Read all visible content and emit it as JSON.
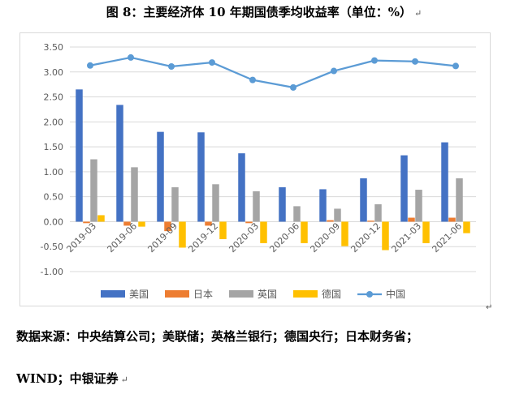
{
  "header": {
    "title": "图 8：主要经济体 10 年期国债季均收益率（单位：%）",
    "return_mark": "↵"
  },
  "footer": {
    "source_line1": "数据来源：中央结算公司；美联储；英格兰银行；德国央行；日本财务省；",
    "source_line2": "WIND；中银证券",
    "return_mark": "↵"
  },
  "chart_data": {
    "type": "bar",
    "title": "",
    "xlabel": "",
    "ylabel": "",
    "ylim": [
      -1.0,
      3.5
    ],
    "yticks": [
      "3.50",
      "3.00",
      "2.50",
      "2.00",
      "1.50",
      "1.00",
      "0.50",
      "0.00",
      "-0.50",
      "-1.00"
    ],
    "grid": true,
    "legend_position": "bottom",
    "categories": [
      "2019-03",
      "2019-06",
      "2019-09",
      "2019-12",
      "2020-03",
      "2020-06",
      "2020-09",
      "2020-12",
      "2021-03",
      "2021-06"
    ],
    "series": [
      {
        "name": "美国",
        "type": "bar",
        "color": "#4472C4",
        "values": [
          2.65,
          2.34,
          1.8,
          1.79,
          1.37,
          0.69,
          0.65,
          0.87,
          1.33,
          1.59
        ]
      },
      {
        "name": "日本",
        "type": "bar",
        "color": "#ED7D31",
        "values": [
          -0.03,
          -0.08,
          -0.19,
          -0.08,
          -0.03,
          0.0,
          0.03,
          0.02,
          0.08,
          0.08
        ]
      },
      {
        "name": "英国",
        "type": "bar",
        "color": "#A5A5A5",
        "values": [
          1.25,
          1.09,
          0.69,
          0.75,
          0.61,
          0.31,
          0.26,
          0.35,
          0.64,
          0.87
        ]
      },
      {
        "name": "德国",
        "type": "bar",
        "color": "#FFC000",
        "values": [
          0.13,
          -0.1,
          -0.52,
          -0.35,
          -0.43,
          -0.43,
          -0.49,
          -0.57,
          -0.43,
          -0.23
        ]
      },
      {
        "name": "中国",
        "type": "line",
        "color": "#5B9BD5",
        "values": [
          3.13,
          3.29,
          3.11,
          3.19,
          2.84,
          2.69,
          3.02,
          3.23,
          3.21,
          3.12
        ]
      }
    ]
  }
}
